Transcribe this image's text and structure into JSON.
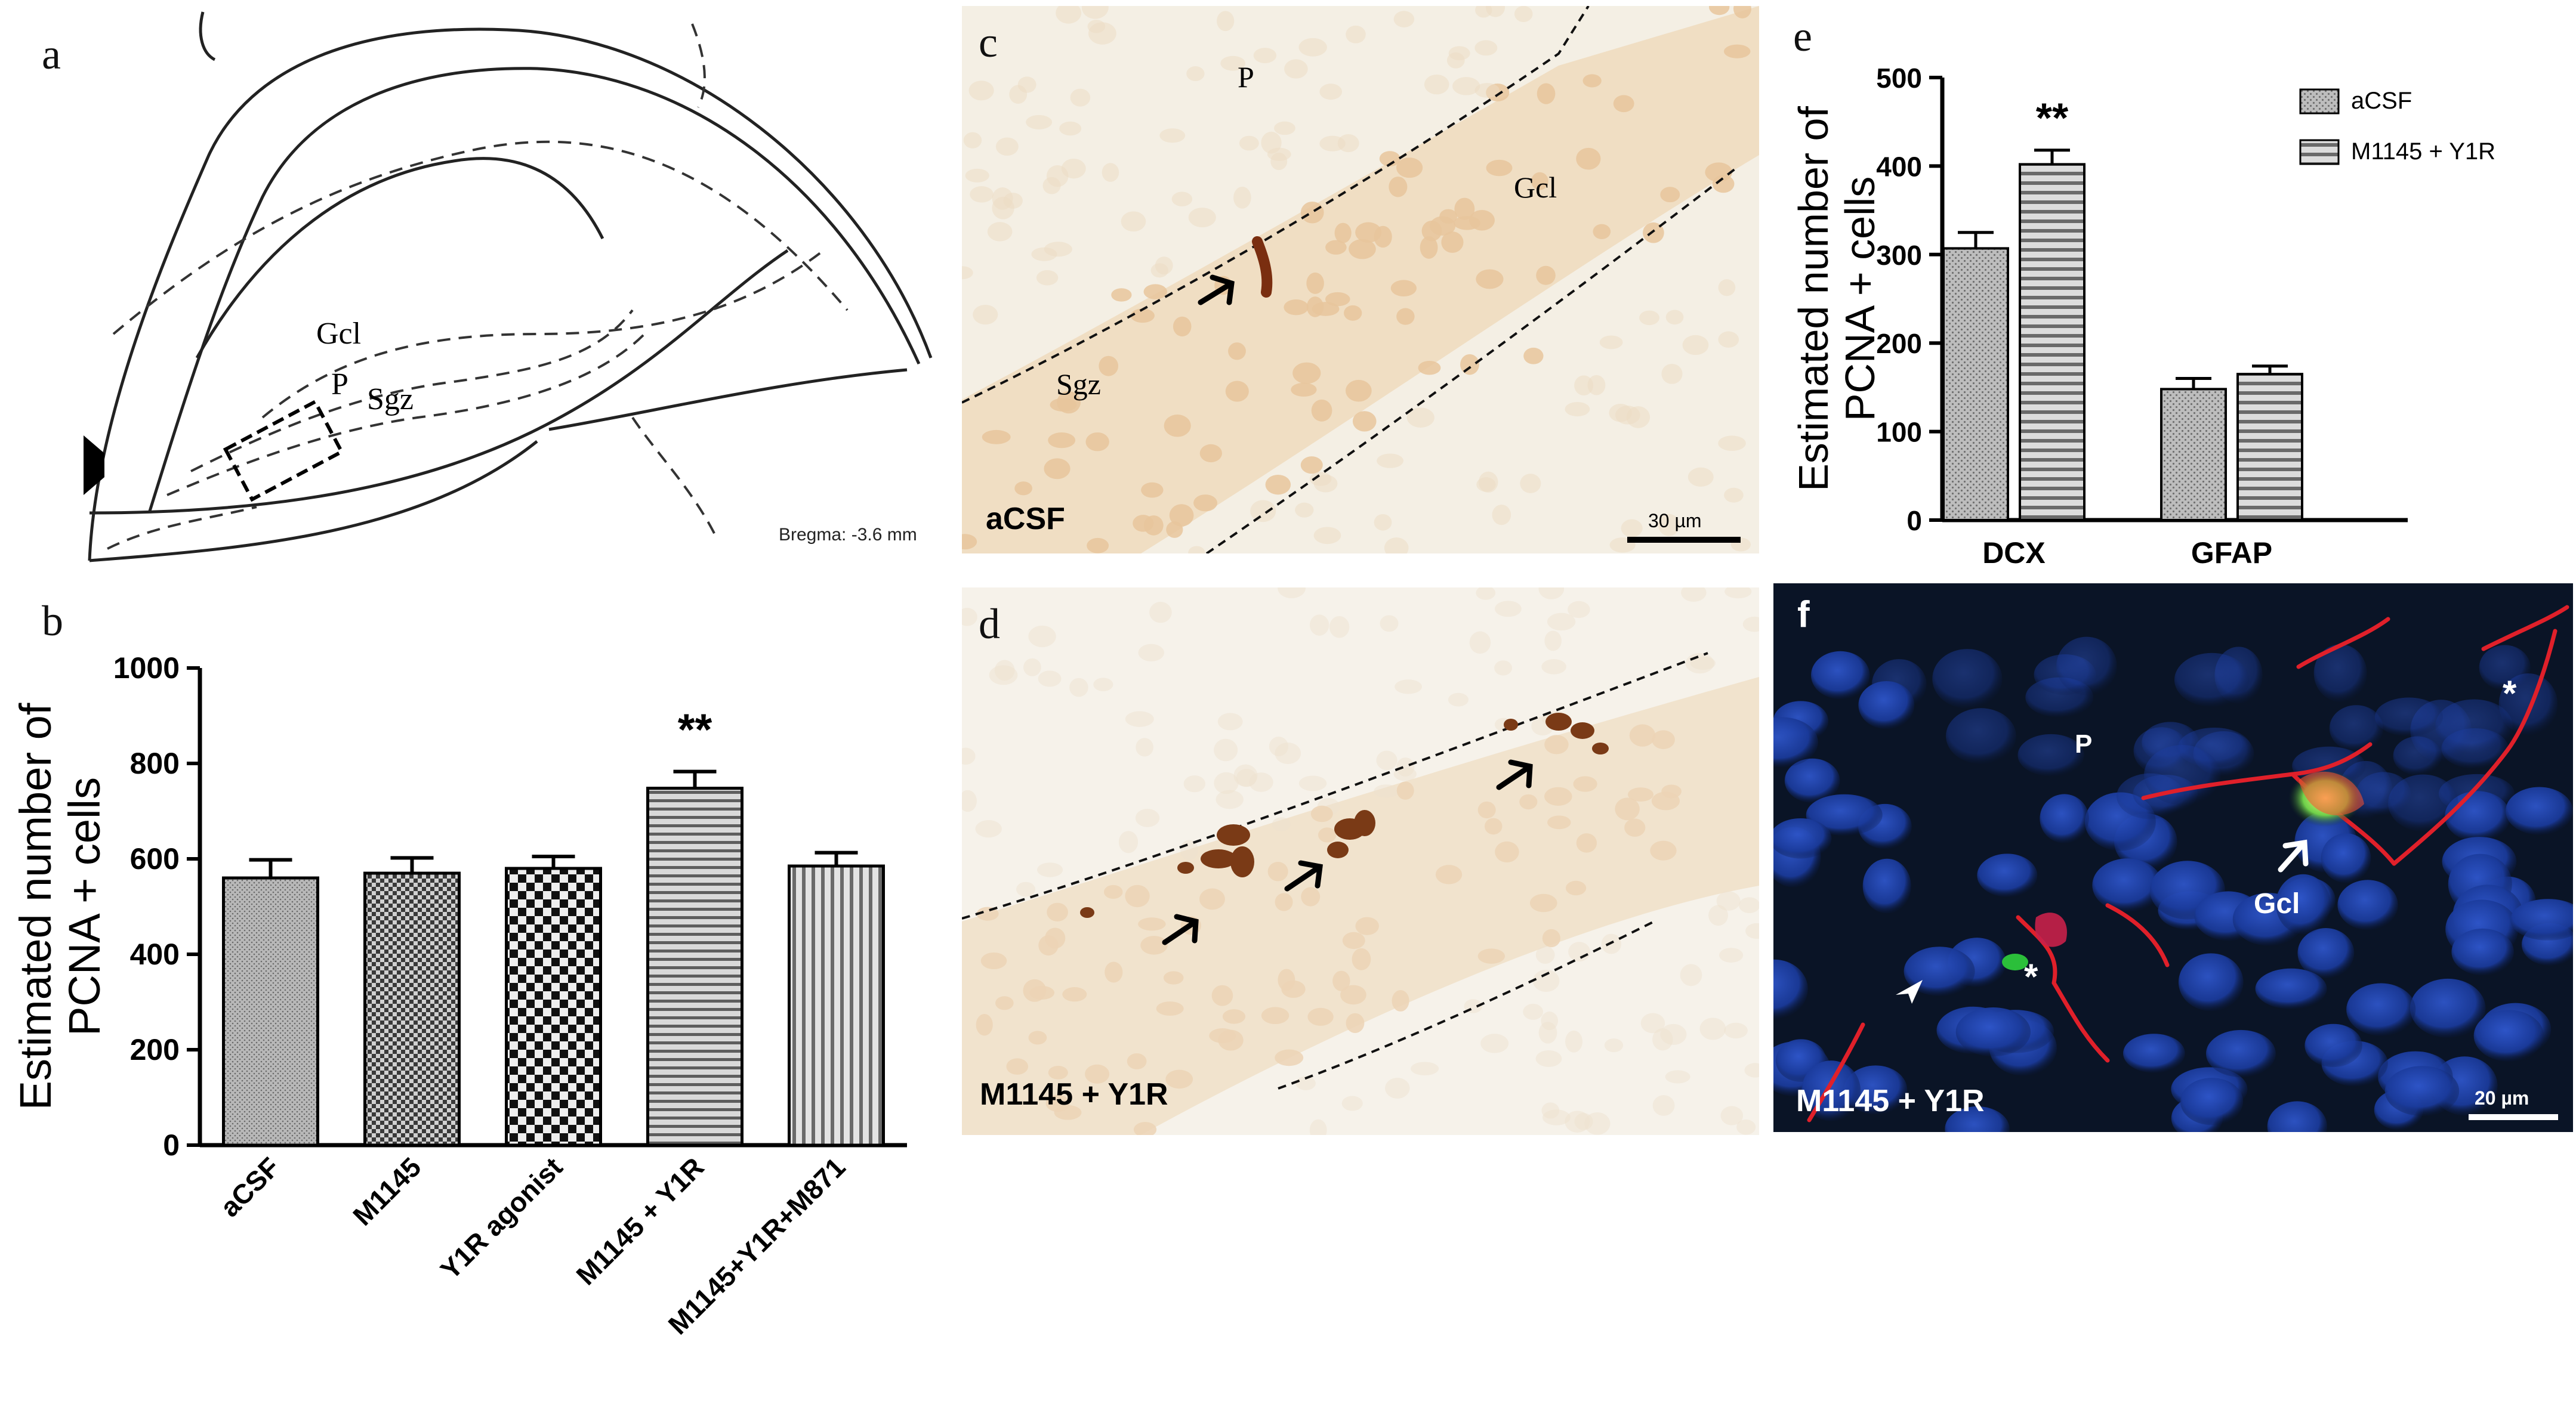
{
  "panels": {
    "a": {
      "label": "a",
      "region_labels": {
        "gcl": "Gcl",
        "p": "P",
        "sgz": "Sgz"
      },
      "bregma": "Bregma: -3.6 mm"
    },
    "b": {
      "label": "b",
      "ylabel_line1": "Estimated number of",
      "ylabel_line2": "PCNA + cells",
      "significance": "**"
    },
    "c": {
      "label": "c",
      "region_labels": {
        "p": "P",
        "gcl": "Gcl",
        "sgz": "Sgz"
      },
      "condition": "aCSF",
      "scale": "30 µm"
    },
    "d": {
      "label": "d",
      "condition": "M1145 + Y1R"
    },
    "e": {
      "label": "e",
      "ylabel_line1": "Estimated number of",
      "ylabel_line2": "PCNA + cells",
      "significance": "**"
    },
    "f": {
      "label": "f",
      "region_labels": {
        "p": "P",
        "gcl": "Gcl",
        "asterisk": "*"
      },
      "condition": "M1145 + Y1R",
      "scale": "20 µm"
    }
  },
  "chart_data": [
    {
      "type": "bar",
      "panel": "b",
      "categories": [
        "aCSF",
        "M1145",
        "Y1R agonist",
        "M1145 + Y1R",
        "M1145+Y1R+M871"
      ],
      "values": [
        560,
        570,
        580,
        748,
        585
      ],
      "errors": [
        38,
        32,
        25,
        35,
        28
      ],
      "ylabel": "Estimated number of PCNA + cells",
      "ylim": [
        0,
        1000
      ],
      "yticks": [
        0,
        200,
        400,
        600,
        800,
        1000
      ],
      "significance": {
        "category": "M1145 + Y1R",
        "mark": "**"
      },
      "colors": {
        "fill": "#a6a6a6",
        "edge": "#000000"
      }
    },
    {
      "type": "bar",
      "panel": "e",
      "categories": [
        "DCX",
        "GFAP"
      ],
      "series": [
        {
          "name": "aCSF",
          "values": [
            307,
            148
          ],
          "errors": [
            18,
            12
          ]
        },
        {
          "name": "M1145 + Y1R",
          "values": [
            402,
            165
          ],
          "errors": [
            16,
            9
          ]
        }
      ],
      "ylabel": "Estimated number of PCNA + cells",
      "ylim": [
        0,
        500
      ],
      "yticks": [
        0,
        100,
        200,
        300,
        400,
        500
      ],
      "legend": "top-right",
      "significance": {
        "category": "DCX",
        "series": "M1145 + Y1R",
        "mark": "**"
      }
    }
  ]
}
